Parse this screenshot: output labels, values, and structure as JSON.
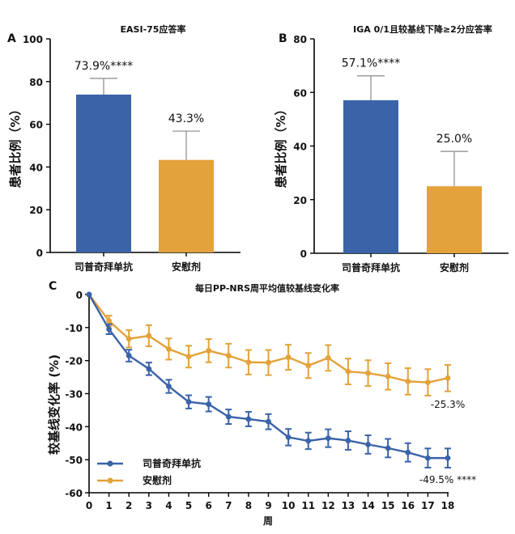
{
  "colors": {
    "treatment": "#3a63a8",
    "placebo": "#e3a23a",
    "error": "#8a8a8a"
  },
  "chart_data": [
    {
      "panel": "A",
      "type": "bar",
      "title": "EASI-75应答率",
      "ylabel": "患者比例（%）",
      "ylim": [
        0,
        100
      ],
      "yticks": [
        "0",
        "20",
        "40",
        "60",
        "80",
        "100"
      ],
      "categories": [
        "司普奇拜单抗",
        "安慰剂"
      ],
      "values": [
        73.9,
        43.3
      ],
      "error_upper": [
        81.5,
        56.8
      ],
      "labels": [
        "73.9%****",
        "43.3%"
      ]
    },
    {
      "panel": "B",
      "type": "bar",
      "title": "IGA 0/1且较基线下降≥2分应答率",
      "ylabel": "患者比例（%）",
      "ylim": [
        0,
        80
      ],
      "yticks": [
        "0",
        "20",
        "40",
        "60",
        "80"
      ],
      "categories": [
        "司普奇拜单抗",
        "安慰剂"
      ],
      "values": [
        57.1,
        25.0
      ],
      "error_upper": [
        66.2,
        38.0
      ],
      "labels": [
        "57.1%****",
        "25.0%"
      ]
    },
    {
      "panel": "C",
      "type": "line",
      "title": "每日PP-NRS周平均值较基线变化率",
      "xlabel": "周",
      "ylabel": "较基线变化率 (%)",
      "ylim": [
        -60,
        0
      ],
      "yticks": [
        "0",
        "-10",
        "-20",
        "-30",
        "-40",
        "-50",
        "-60"
      ],
      "x": [
        0,
        1,
        2,
        3,
        4,
        5,
        6,
        7,
        8,
        9,
        10,
        11,
        12,
        13,
        14,
        15,
        16,
        17,
        18
      ],
      "xticks": [
        "0",
        "1",
        "2",
        "3",
        "4",
        "5",
        "6",
        "7",
        "8",
        "9",
        "10",
        "11",
        "12",
        "13",
        "14",
        "15",
        "16",
        "17",
        "18"
      ],
      "series": [
        {
          "name": "司普奇拜单抗",
          "values": [
            0,
            -10.5,
            -18.5,
            -22.5,
            -27.8,
            -32.5,
            -33.2,
            -37.0,
            -37.7,
            -38.5,
            -43.2,
            -44.3,
            -43.5,
            -44.2,
            -45.4,
            -46.5,
            -47.8,
            -49.5,
            -49.5
          ],
          "err": [
            0,
            1.5,
            1.8,
            1.9,
            2.0,
            2.0,
            2.2,
            2.2,
            2.2,
            2.3,
            2.5,
            2.5,
            2.7,
            2.8,
            2.8,
            2.8,
            2.8,
            2.9,
            2.9
          ],
          "end_label": "-49.5% ****"
        },
        {
          "name": "安慰剂",
          "values": [
            0,
            -8.0,
            -13.4,
            -12.5,
            -16.5,
            -18.8,
            -17.0,
            -18.5,
            -20.5,
            -20.6,
            -19.0,
            -21.5,
            -19.2,
            -23.3,
            -23.8,
            -24.8,
            -26.3,
            -26.6,
            -25.3
          ],
          "err": [
            0,
            1.6,
            2.6,
            3.2,
            3.2,
            3.3,
            3.5,
            3.6,
            3.7,
            3.8,
            3.8,
            3.8,
            3.9,
            3.9,
            3.9,
            4.0,
            4.0,
            4.0,
            4.0
          ],
          "end_label": "-25.3%"
        }
      ]
    }
  ]
}
